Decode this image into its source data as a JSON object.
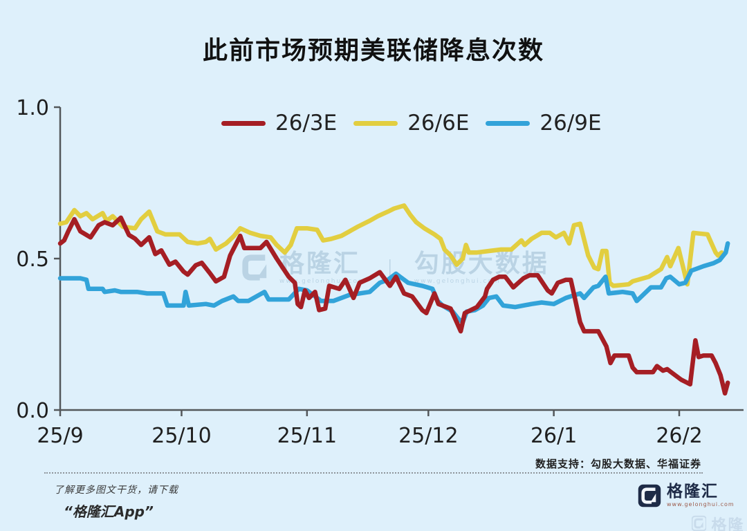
{
  "page": {
    "background": "#def0fb"
  },
  "header": {
    "title": "此前市场预期美联储降息次数"
  },
  "watermark": {
    "brand": "格隆汇",
    "divider": "｜",
    "product": "勾股大数据",
    "url": "www.gelonghui.com"
  },
  "footer": {
    "support": "数据支持：勾股大数据、华福证券",
    "promo_line1": "了解更多图文干货，请下载",
    "promo_line2": "“格隆汇App”",
    "brand": "格隆汇",
    "url": "www.gelonghui.com"
  },
  "chart_data": {
    "type": "line",
    "title": "此前市场预期美联储降息次数",
    "xlabel": "",
    "ylabel": "",
    "x_unit": "days from 2025-09-01",
    "x_domain": [
      0,
      165
    ],
    "y_axis": {
      "min": 0,
      "max": 1,
      "ticks": [
        {
          "value": 0,
          "label": "0.0"
        },
        {
          "value": 0.5,
          "label": "0.5"
        },
        {
          "value": 1,
          "label": "1.0"
        }
      ]
    },
    "x_axis": {
      "ticks": [
        {
          "day": 0,
          "label": "25/9"
        },
        {
          "day": 30,
          "label": "25/10"
        },
        {
          "day": 61,
          "label": "25/11"
        },
        {
          "day": 91,
          "label": "25/12"
        },
        {
          "day": 122,
          "label": "26/1"
        },
        {
          "day": 153,
          "label": "26/2"
        }
      ]
    },
    "grid": false,
    "legend_position": "top-center",
    "series": [
      {
        "name": "26/3E",
        "color": "#a51e24",
        "points": [
          [
            0,
            0.55
          ],
          [
            1,
            0.56
          ],
          [
            2,
            0.59
          ],
          [
            3.5,
            0.63
          ],
          [
            5,
            0.59
          ],
          [
            7.5,
            0.57
          ],
          [
            9.5,
            0.61
          ],
          [
            11,
            0.62
          ],
          [
            13,
            0.61
          ],
          [
            15,
            0.635
          ],
          [
            17,
            0.578
          ],
          [
            18.5,
            0.566
          ],
          [
            20,
            0.545
          ],
          [
            22,
            0.57
          ],
          [
            23.5,
            0.515
          ],
          [
            25,
            0.527
          ],
          [
            27,
            0.48
          ],
          [
            28.5,
            0.49
          ],
          [
            30.5,
            0.457
          ],
          [
            31.5,
            0.447
          ],
          [
            33.5,
            0.478
          ],
          [
            35,
            0.486
          ],
          [
            37,
            0.452
          ],
          [
            38.5,
            0.425
          ],
          [
            40.5,
            0.44
          ],
          [
            42,
            0.51
          ],
          [
            44.5,
            0.575
          ],
          [
            45.5,
            0.535
          ],
          [
            49.5,
            0.535
          ],
          [
            51,
            0.555
          ],
          [
            53.5,
            0.5
          ],
          [
            56.5,
            0.44
          ],
          [
            58,
            0.42
          ],
          [
            58.7,
            0.35
          ],
          [
            59.5,
            0.34
          ],
          [
            60.5,
            0.395
          ],
          [
            61.5,
            0.37
          ],
          [
            63,
            0.39
          ],
          [
            64,
            0.33
          ],
          [
            65.5,
            0.335
          ],
          [
            66.5,
            0.41
          ],
          [
            69,
            0.4
          ],
          [
            70.5,
            0.43
          ],
          [
            72.5,
            0.37
          ],
          [
            74,
            0.42
          ],
          [
            76.5,
            0.435
          ],
          [
            79,
            0.455
          ],
          [
            81.5,
            0.41
          ],
          [
            83,
            0.44
          ],
          [
            85,
            0.385
          ],
          [
            87,
            0.375
          ],
          [
            89.5,
            0.33
          ],
          [
            90.5,
            0.32
          ],
          [
            92.5,
            0.385
          ],
          [
            93.5,
            0.35
          ],
          [
            96.5,
            0.335
          ],
          [
            99,
            0.26
          ],
          [
            100,
            0.32
          ],
          [
            103,
            0.34
          ],
          [
            105,
            0.375
          ],
          [
            105.5,
            0.4
          ],
          [
            107,
            0.43
          ],
          [
            108.5,
            0.44
          ],
          [
            110,
            0.44
          ],
          [
            112,
            0.405
          ],
          [
            114.5,
            0.435
          ],
          [
            116,
            0.445
          ],
          [
            118,
            0.445
          ],
          [
            120.5,
            0.395
          ],
          [
            121.5,
            0.385
          ],
          [
            123,
            0.42
          ],
          [
            125,
            0.43
          ],
          [
            126.2,
            0.43
          ],
          [
            127.2,
            0.37
          ],
          [
            128.5,
            0.29
          ],
          [
            129.5,
            0.26
          ],
          [
            133,
            0.26
          ],
          [
            135,
            0.21
          ],
          [
            136,
            0.155
          ],
          [
            137,
            0.18
          ],
          [
            140.5,
            0.18
          ],
          [
            141.5,
            0.14
          ],
          [
            142.5,
            0.125
          ],
          [
            146.5,
            0.125
          ],
          [
            147.5,
            0.145
          ],
          [
            149,
            0.13
          ],
          [
            150,
            0.135
          ],
          [
            151,
            0.125
          ],
          [
            153.5,
            0.1
          ],
          [
            155,
            0.09
          ],
          [
            155.7,
            0.085
          ],
          [
            157,
            0.23
          ],
          [
            157.8,
            0.175
          ],
          [
            159,
            0.18
          ],
          [
            161,
            0.18
          ],
          [
            162,
            0.155
          ],
          [
            163.2,
            0.115
          ],
          [
            164.3,
            0.055
          ],
          [
            165,
            0.09
          ]
        ]
      },
      {
        "name": "26/6E",
        "color": "#e2ce40",
        "points": [
          [
            0,
            0.615
          ],
          [
            1.5,
            0.62
          ],
          [
            3.5,
            0.66
          ],
          [
            5,
            0.64
          ],
          [
            6.5,
            0.65
          ],
          [
            8,
            0.63
          ],
          [
            10.5,
            0.65
          ],
          [
            11.5,
            0.625
          ],
          [
            13,
            0.64
          ],
          [
            15.5,
            0.605
          ],
          [
            18.5,
            0.6
          ],
          [
            20,
            0.63
          ],
          [
            22,
            0.655
          ],
          [
            24,
            0.59
          ],
          [
            26,
            0.58
          ],
          [
            29.5,
            0.58
          ],
          [
            31.5,
            0.555
          ],
          [
            34,
            0.55
          ],
          [
            36,
            0.555
          ],
          [
            37,
            0.565
          ],
          [
            38.5,
            0.53
          ],
          [
            41,
            0.55
          ],
          [
            43,
            0.575
          ],
          [
            44.5,
            0.6
          ],
          [
            47,
            0.585
          ],
          [
            49.5,
            0.575
          ],
          [
            52,
            0.57
          ],
          [
            53.5,
            0.545
          ],
          [
            55.5,
            0.52
          ],
          [
            57,
            0.545
          ],
          [
            58.5,
            0.6
          ],
          [
            61,
            0.6
          ],
          [
            63.5,
            0.595
          ],
          [
            65,
            0.56
          ],
          [
            67,
            0.565
          ],
          [
            69.5,
            0.575
          ],
          [
            71.5,
            0.59
          ],
          [
            73.5,
            0.605
          ],
          [
            76.5,
            0.625
          ],
          [
            78.5,
            0.64
          ],
          [
            81,
            0.655
          ],
          [
            82.5,
            0.665
          ],
          [
            85,
            0.675
          ],
          [
            86.5,
            0.645
          ],
          [
            88,
            0.62
          ],
          [
            90,
            0.6
          ],
          [
            92.5,
            0.58
          ],
          [
            94,
            0.565
          ],
          [
            95,
            0.53
          ],
          [
            96.5,
            0.51
          ],
          [
            98,
            0.48
          ],
          [
            99.5,
            0.5
          ],
          [
            100.3,
            0.545
          ],
          [
            101,
            0.52
          ],
          [
            103,
            0.52
          ],
          [
            106,
            0.525
          ],
          [
            109,
            0.53
          ],
          [
            111.5,
            0.53
          ],
          [
            114,
            0.56
          ],
          [
            114.8,
            0.545
          ],
          [
            116.5,
            0.565
          ],
          [
            119,
            0.585
          ],
          [
            121,
            0.585
          ],
          [
            122.5,
            0.57
          ],
          [
            124.5,
            0.585
          ],
          [
            125.8,
            0.55
          ],
          [
            127,
            0.61
          ],
          [
            128.5,
            0.615
          ],
          [
            130.5,
            0.51
          ],
          [
            132,
            0.47
          ],
          [
            133,
            0.465
          ],
          [
            134,
            0.525
          ],
          [
            135,
            0.525
          ],
          [
            135.8,
            0.42
          ],
          [
            136.7,
            0.41
          ],
          [
            140.5,
            0.415
          ],
          [
            141.5,
            0.425
          ],
          [
            145.5,
            0.44
          ],
          [
            148.5,
            0.465
          ],
          [
            150,
            0.505
          ],
          [
            150.8,
            0.475
          ],
          [
            152.8,
            0.535
          ],
          [
            155,
            0.415
          ],
          [
            156.5,
            0.585
          ],
          [
            160,
            0.58
          ],
          [
            162,
            0.52
          ],
          [
            162.6,
            0.51
          ],
          [
            163.5,
            0.52
          ]
        ]
      },
      {
        "name": "26/9E",
        "color": "#32a3d9",
        "points": [
          [
            0,
            0.435
          ],
          [
            5,
            0.435
          ],
          [
            6.5,
            0.43
          ],
          [
            7,
            0.4
          ],
          [
            10.5,
            0.4
          ],
          [
            11,
            0.39
          ],
          [
            13.5,
            0.395
          ],
          [
            15,
            0.39
          ],
          [
            19,
            0.39
          ],
          [
            21.5,
            0.385
          ],
          [
            25.5,
            0.385
          ],
          [
            26.5,
            0.345
          ],
          [
            30.5,
            0.345
          ],
          [
            31,
            0.39
          ],
          [
            31.8,
            0.345
          ],
          [
            36,
            0.35
          ],
          [
            38,
            0.345
          ],
          [
            40,
            0.36
          ],
          [
            42.8,
            0.375
          ],
          [
            44,
            0.36
          ],
          [
            46.5,
            0.36
          ],
          [
            50.5,
            0.39
          ],
          [
            51.5,
            0.365
          ],
          [
            56.5,
            0.365
          ],
          [
            59,
            0.4
          ],
          [
            61,
            0.395
          ],
          [
            64.5,
            0.36
          ],
          [
            67.5,
            0.36
          ],
          [
            71.5,
            0.38
          ],
          [
            76.5,
            0.39
          ],
          [
            79,
            0.42
          ],
          [
            81,
            0.43
          ],
          [
            83,
            0.45
          ],
          [
            84,
            0.44
          ],
          [
            86,
            0.42
          ],
          [
            89.5,
            0.41
          ],
          [
            92,
            0.4
          ],
          [
            93.3,
            0.36
          ],
          [
            94.5,
            0.345
          ],
          [
            97,
            0.325
          ],
          [
            98.5,
            0.3
          ],
          [
            99.5,
            0.29
          ],
          [
            100.5,
            0.325
          ],
          [
            102.5,
            0.33
          ],
          [
            104.5,
            0.345
          ],
          [
            106,
            0.37
          ],
          [
            107.8,
            0.375
          ],
          [
            109.5,
            0.345
          ],
          [
            112.5,
            0.34
          ],
          [
            116.5,
            0.35
          ],
          [
            119,
            0.355
          ],
          [
            122,
            0.35
          ],
          [
            125,
            0.37
          ],
          [
            128.5,
            0.385
          ],
          [
            129.5,
            0.37
          ],
          [
            131.8,
            0.405
          ],
          [
            133,
            0.41
          ],
          [
            134.8,
            0.44
          ],
          [
            135.6,
            0.385
          ],
          [
            139,
            0.39
          ],
          [
            141.5,
            0.385
          ],
          [
            142.5,
            0.36
          ],
          [
            146,
            0.405
          ],
          [
            148.5,
            0.405
          ],
          [
            149.8,
            0.435
          ],
          [
            150.8,
            0.44
          ],
          [
            153,
            0.415
          ],
          [
            154.5,
            0.42
          ],
          [
            156,
            0.46
          ],
          [
            159,
            0.475
          ],
          [
            161.5,
            0.485
          ],
          [
            163,
            0.495
          ],
          [
            164.5,
            0.52
          ],
          [
            165,
            0.55
          ]
        ]
      }
    ]
  }
}
